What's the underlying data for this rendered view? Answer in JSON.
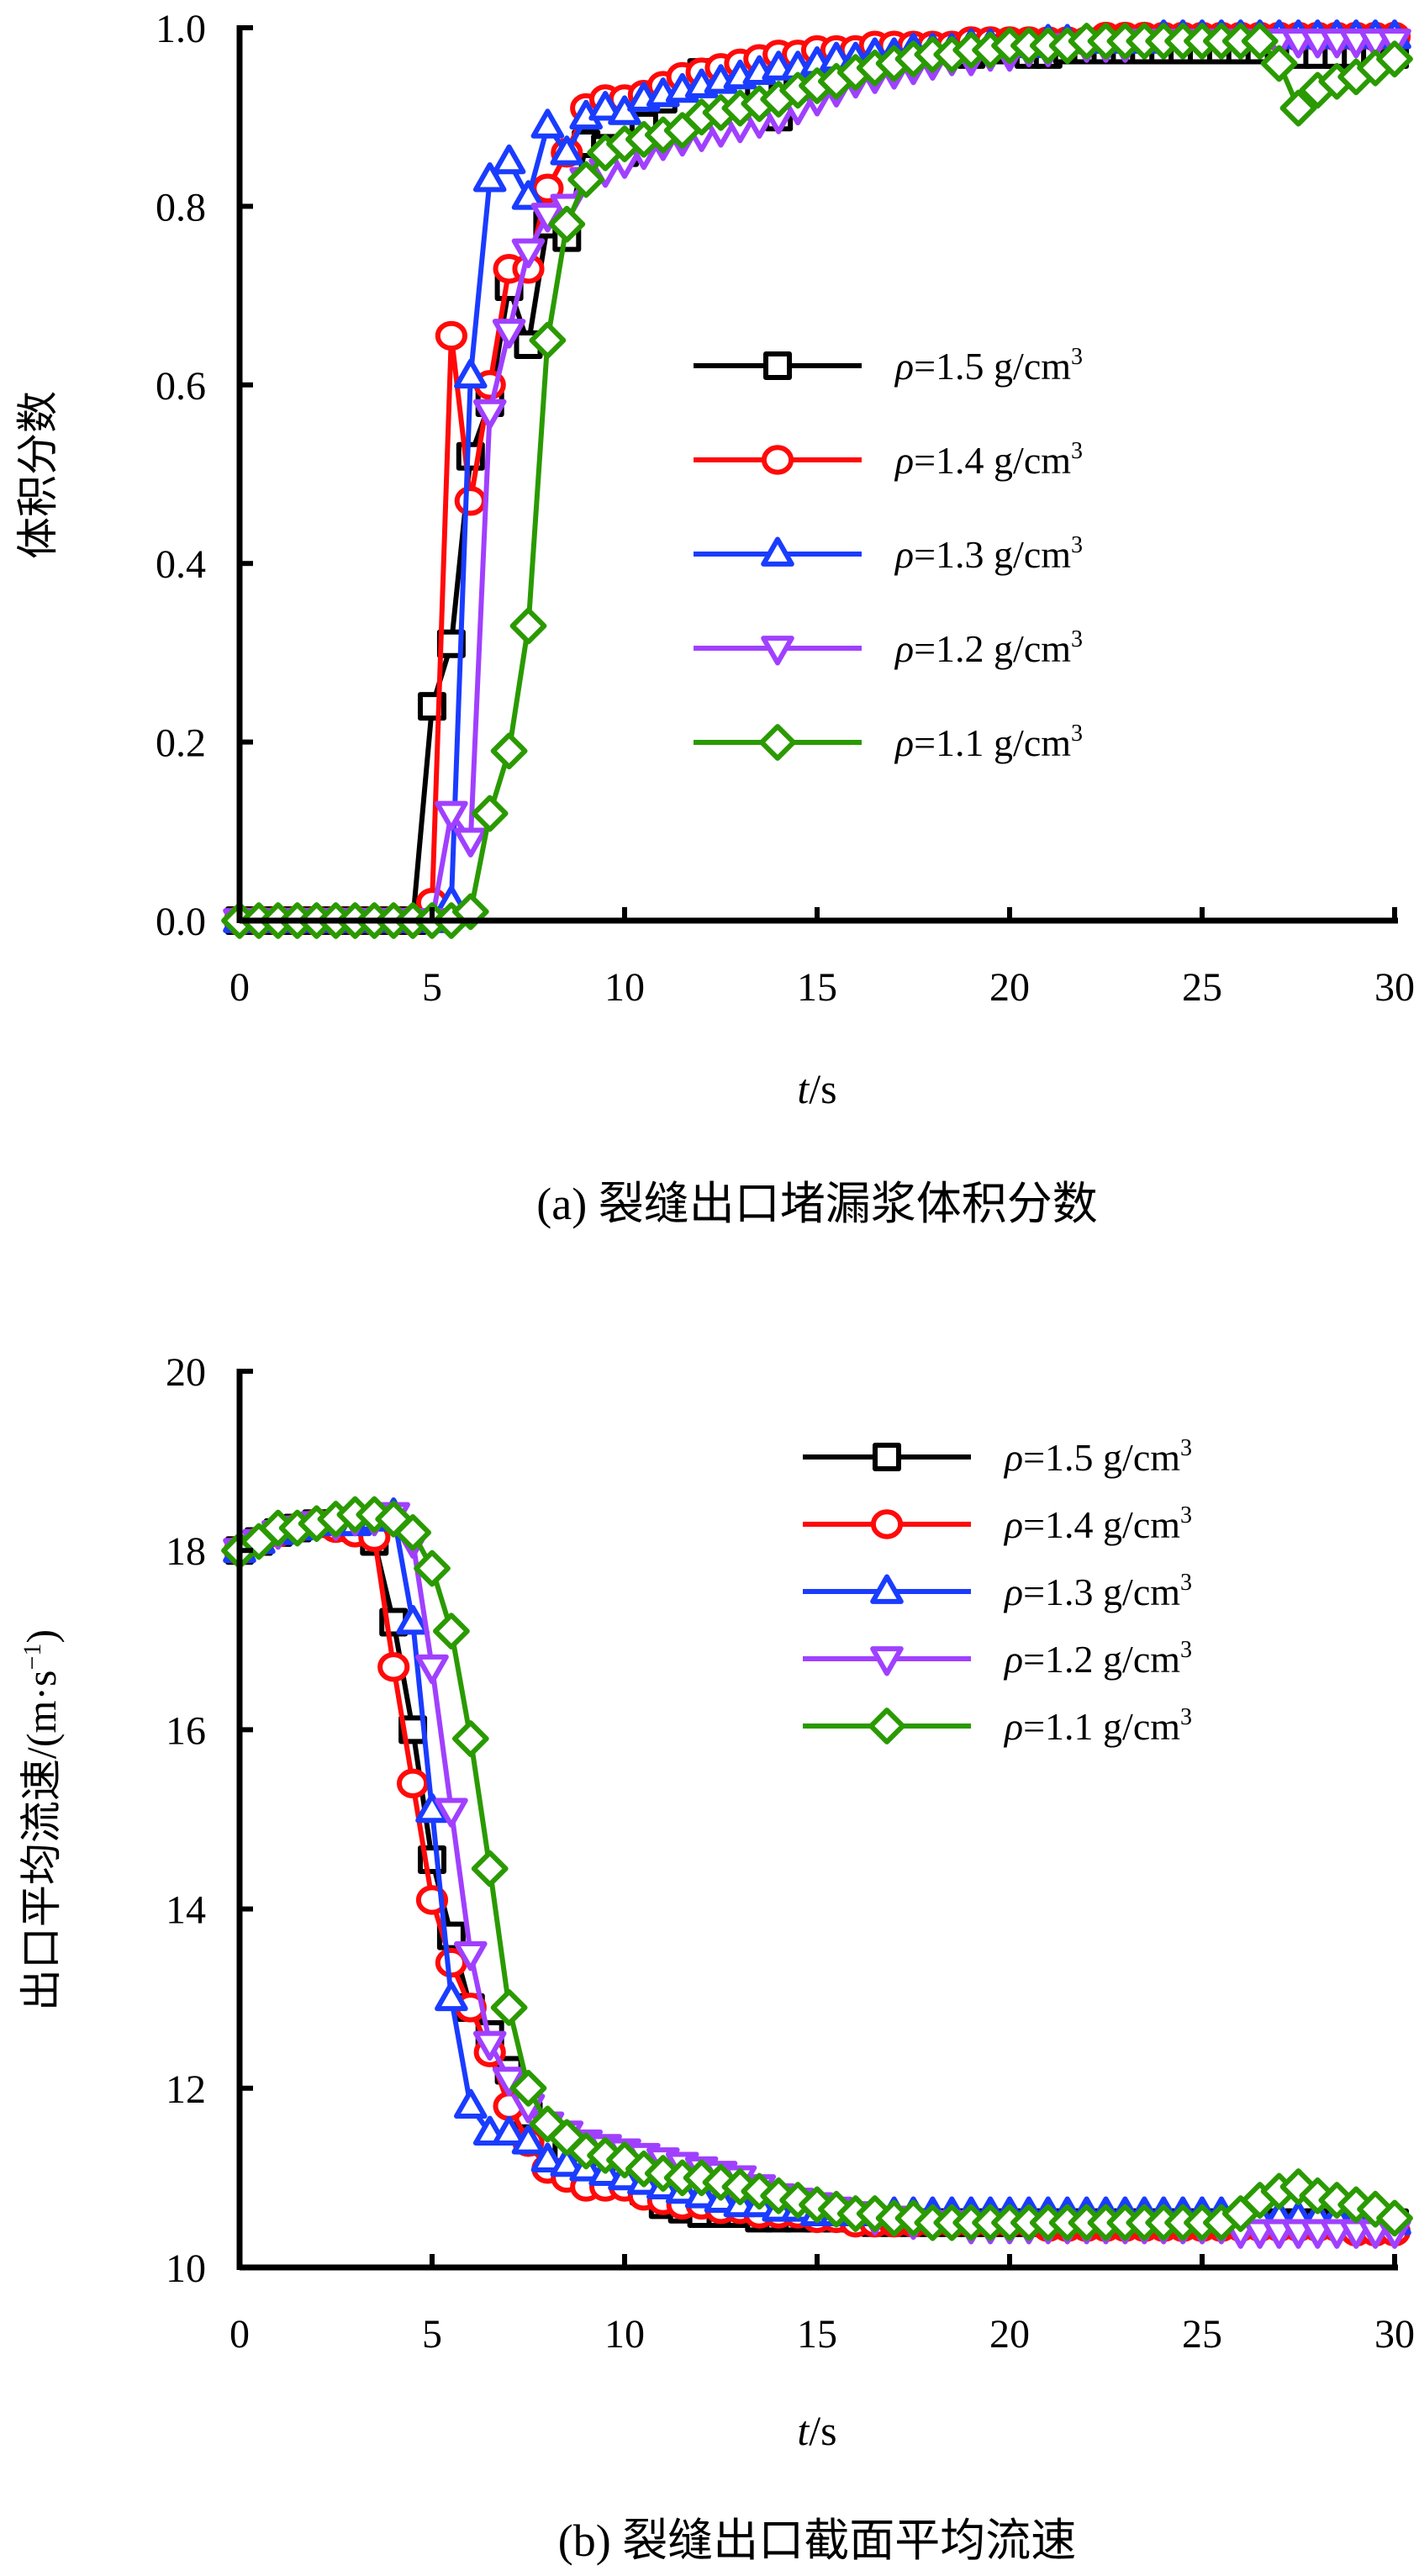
{
  "chart_data": [
    {
      "id": "a",
      "type": "line",
      "caption": "(a) 裂缝出口堵漏浆体积分数",
      "xlabel_italic": "t",
      "xlabel_unit": "/s",
      "ylabel": "体积分数",
      "xlim": [
        0,
        30
      ],
      "ylim": [
        0,
        1.0
      ],
      "xticks": [
        0,
        5,
        10,
        15,
        20,
        25,
        30
      ],
      "yticks": [
        0.0,
        0.2,
        0.4,
        0.6,
        0.8,
        1.0
      ],
      "ytick_labels": [
        "0.0",
        "0.2",
        "0.4",
        "0.6",
        "0.8",
        "1.0"
      ],
      "grid": false,
      "legend_position": "center-right",
      "x": [
        0,
        0.5,
        1,
        1.5,
        2,
        2.5,
        3,
        3.5,
        4,
        4.5,
        5,
        5.5,
        6,
        6.5,
        7,
        7.5,
        8,
        8.5,
        9,
        9.5,
        10,
        10.5,
        11,
        11.5,
        12,
        12.5,
        13,
        13.5,
        14,
        14.5,
        15,
        15.5,
        16,
        16.5,
        17,
        17.5,
        18,
        18.5,
        19,
        19.5,
        20,
        20.5,
        21,
        21.5,
        22,
        22.5,
        23,
        23.5,
        24,
        24.5,
        25,
        25.5,
        26,
        26.5,
        27,
        27.5,
        28,
        28.5,
        29,
        29.5,
        30
      ],
      "series": [
        {
          "name": "ρ=1.5 g/cm³",
          "label_prefix": "ρ",
          "label_value": "=1.5 g/cm",
          "label_sup": "3",
          "color": "#000000",
          "marker": "square",
          "values": [
            0,
            0,
            0,
            0,
            0,
            0,
            0,
            0,
            0,
            0,
            0.24,
            0.31,
            0.52,
            0.58,
            0.71,
            0.645,
            0.78,
            0.765,
            0.87,
            0.865,
            0.86,
            0.89,
            0.92,
            0.935,
            0.95,
            0.95,
            0.95,
            0.93,
            0.9,
            0.93,
            0.95,
            0.955,
            0.96,
            0.965,
            0.97,
            0.97,
            0.975,
            0.975,
            0.97,
            0.975,
            0.975,
            0.97,
            0.97,
            0.975,
            0.975,
            0.975,
            0.975,
            0.975,
            0.975,
            0.975,
            0.975,
            0.975,
            0.975,
            0.975,
            0.97,
            0.97,
            0.97,
            0.97,
            0.97,
            0.97,
            0.97
          ]
        },
        {
          "name": "ρ=1.4 g/cm³",
          "label_prefix": "ρ",
          "label_value": "=1.4 g/cm",
          "label_sup": "3",
          "color": "#ff0a0a",
          "marker": "circle",
          "values": [
            0,
            0,
            0,
            0,
            0,
            0,
            0,
            0,
            0,
            0,
            0.02,
            0.655,
            0.47,
            0.6,
            0.73,
            0.73,
            0.82,
            0.86,
            0.91,
            0.92,
            0.92,
            0.925,
            0.935,
            0.945,
            0.95,
            0.955,
            0.96,
            0.965,
            0.97,
            0.97,
            0.975,
            0.975,
            0.975,
            0.98,
            0.98,
            0.98,
            0.98,
            0.98,
            0.985,
            0.985,
            0.985,
            0.985,
            0.985,
            0.985,
            0.985,
            0.99,
            0.99,
            0.99,
            0.99,
            0.99,
            0.99,
            0.99,
            0.99,
            0.99,
            0.99,
            0.99,
            0.99,
            0.99,
            0.99,
            0.99,
            0.99
          ]
        },
        {
          "name": "ρ=1.3 g/cm³",
          "label_prefix": "ρ",
          "label_value": "=1.3 g/cm",
          "label_sup": "3",
          "color": "#1a3cff",
          "marker": "triangle-up",
          "values": [
            0,
            0,
            0,
            0,
            0,
            0,
            0,
            0,
            0,
            0,
            0,
            0.02,
            0.61,
            0.83,
            0.85,
            0.81,
            0.89,
            0.86,
            0.9,
            0.91,
            0.905,
            0.92,
            0.925,
            0.93,
            0.935,
            0.94,
            0.945,
            0.95,
            0.955,
            0.955,
            0.96,
            0.965,
            0.965,
            0.97,
            0.97,
            0.975,
            0.975,
            0.975,
            0.98,
            0.98,
            0.98,
            0.98,
            0.985,
            0.985,
            0.985,
            0.985,
            0.985,
            0.985,
            0.99,
            0.99,
            0.99,
            0.99,
            0.99,
            0.99,
            0.99,
            0.99,
            0.99,
            0.99,
            0.99,
            0.99,
            0.99
          ]
        },
        {
          "name": "ρ=1.2 g/cm³",
          "label_prefix": "ρ",
          "label_value": "=1.2 g/cm",
          "label_sup": "3",
          "color": "#a040ff",
          "marker": "triangle-down",
          "values": [
            0,
            0,
            0,
            0,
            0,
            0,
            0,
            0,
            0,
            0,
            0,
            0.12,
            0.09,
            0.57,
            0.66,
            0.75,
            0.79,
            0.8,
            0.83,
            0.84,
            0.85,
            0.86,
            0.87,
            0.875,
            0.88,
            0.885,
            0.89,
            0.895,
            0.9,
            0.91,
            0.92,
            0.93,
            0.94,
            0.945,
            0.95,
            0.955,
            0.96,
            0.965,
            0.965,
            0.97,
            0.97,
            0.975,
            0.975,
            0.98,
            0.98,
            0.98,
            0.98,
            0.985,
            0.985,
            0.985,
            0.985,
            0.985,
            0.985,
            0.985,
            0.985,
            0.985,
            0.985,
            0.985,
            0.985,
            0.985,
            0.985
          ]
        },
        {
          "name": "ρ=1.1 g/cm³",
          "label_prefix": "ρ",
          "label_value": "=1.1 g/cm",
          "label_sup": "3",
          "color": "#2a9a00",
          "marker": "diamond",
          "values": [
            0,
            0,
            0,
            0,
            0,
            0,
            0,
            0,
            0,
            0,
            0,
            0,
            0.01,
            0.12,
            0.19,
            0.33,
            0.65,
            0.78,
            0.83,
            0.86,
            0.87,
            0.875,
            0.88,
            0.885,
            0.9,
            0.905,
            0.91,
            0.915,
            0.92,
            0.93,
            0.935,
            0.94,
            0.95,
            0.955,
            0.96,
            0.965,
            0.97,
            0.97,
            0.975,
            0.975,
            0.98,
            0.98,
            0.98,
            0.98,
            0.985,
            0.985,
            0.985,
            0.985,
            0.985,
            0.985,
            0.985,
            0.985,
            0.985,
            0.985,
            0.96,
            0.91,
            0.93,
            0.94,
            0.945,
            0.955,
            0.965
          ]
        }
      ]
    },
    {
      "id": "b",
      "type": "line",
      "caption": "(b) 裂缝出口截面平均流速",
      "xlabel_italic": "t",
      "xlabel_unit": "/s",
      "ylabel": "出口平均流速/(m·s",
      "ylabel_sup": "−1",
      "ylabel_end": ")",
      "xlim": [
        0,
        30
      ],
      "ylim": [
        10,
        20
      ],
      "xticks": [
        0,
        5,
        10,
        15,
        20,
        25,
        30
      ],
      "yticks": [
        10,
        12,
        14,
        16,
        18,
        20
      ],
      "ytick_labels": [
        "10",
        "12",
        "14",
        "16",
        "18",
        "20"
      ],
      "grid": false,
      "legend_position": "top-right",
      "x": [
        0,
        0.5,
        1,
        1.5,
        2,
        2.5,
        3,
        3.5,
        4,
        4.5,
        5,
        5.5,
        6,
        6.5,
        7,
        7.5,
        8,
        8.5,
        9,
        9.5,
        10,
        10.5,
        11,
        11.5,
        12,
        12.5,
        13,
        13.5,
        14,
        14.5,
        15,
        15.5,
        16,
        16.5,
        17,
        17.5,
        18,
        18.5,
        19,
        19.5,
        20,
        20.5,
        21,
        21.5,
        22,
        22.5,
        23,
        23.5,
        24,
        24.5,
        25,
        25.5,
        26,
        26.5,
        27,
        27.5,
        28,
        28.5,
        29,
        29.5,
        30
      ],
      "series": [
        {
          "name": "ρ=1.5 g/cm³",
          "label_prefix": "ρ",
          "label_value": "=1.5 g/cm",
          "label_sup": "3",
          "color": "#000000",
          "marker": "square",
          "values": [
            18.0,
            18.1,
            18.2,
            18.25,
            18.3,
            18.3,
            18.25,
            18.1,
            17.2,
            16.0,
            14.55,
            13.7,
            12.9,
            12.6,
            12.2,
            11.7,
            11.4,
            11.25,
            11.1,
            11.05,
            11.0,
            10.85,
            10.7,
            10.65,
            10.6,
            10.6,
            10.6,
            10.55,
            10.55,
            10.55,
            10.55,
            10.55,
            10.55,
            10.5,
            10.5,
            10.5,
            10.5,
            10.5,
            10.5,
            10.5,
            10.5,
            10.5,
            10.5,
            10.5,
            10.5,
            10.5,
            10.5,
            10.5,
            10.5,
            10.5,
            10.5,
            10.5,
            10.5,
            10.5,
            10.5,
            10.5,
            10.5,
            10.5,
            10.5,
            10.5,
            10.5
          ]
        },
        {
          "name": "ρ=1.4 g/cm³",
          "label_prefix": "ρ",
          "label_value": "=1.4 g/cm",
          "label_sup": "3",
          "color": "#ff0a0a",
          "marker": "circle",
          "values": [
            18.0,
            18.1,
            18.2,
            18.25,
            18.3,
            18.25,
            18.2,
            18.15,
            16.7,
            15.4,
            14.1,
            13.4,
            12.9,
            12.4,
            11.8,
            11.4,
            11.1,
            11.0,
            10.9,
            10.9,
            10.9,
            10.8,
            10.75,
            10.7,
            10.7,
            10.65,
            10.65,
            10.6,
            10.6,
            10.6,
            10.55,
            10.55,
            10.5,
            10.5,
            10.5,
            10.5,
            10.5,
            10.5,
            10.5,
            10.5,
            10.5,
            10.5,
            10.45,
            10.45,
            10.45,
            10.45,
            10.45,
            10.45,
            10.45,
            10.45,
            10.45,
            10.45,
            10.45,
            10.45,
            10.45,
            10.45,
            10.45,
            10.45,
            10.4,
            10.4,
            10.4
          ]
        },
        {
          "name": "ρ=1.3 g/cm³",
          "label_prefix": "ρ",
          "label_value": "=1.3 g/cm",
          "label_sup": "3",
          "color": "#1a3cff",
          "marker": "triangle-up",
          "values": [
            18.0,
            18.1,
            18.2,
            18.25,
            18.3,
            18.3,
            18.3,
            18.35,
            18.4,
            17.2,
            15.1,
            13.0,
            11.8,
            11.5,
            11.5,
            11.4,
            11.2,
            11.15,
            11.1,
            11.05,
            11.0,
            10.95,
            10.9,
            10.85,
            10.8,
            10.75,
            10.7,
            10.7,
            10.65,
            10.65,
            10.6,
            10.6,
            10.6,
            10.6,
            10.6,
            10.6,
            10.6,
            10.6,
            10.6,
            10.6,
            10.6,
            10.6,
            10.6,
            10.6,
            10.6,
            10.6,
            10.6,
            10.6,
            10.6,
            10.6,
            10.6,
            10.6,
            10.55,
            10.55,
            10.55,
            10.55,
            10.55,
            10.55,
            10.55,
            10.55,
            10.5
          ]
        },
        {
          "name": "ρ=1.2 g/cm³",
          "label_prefix": "ρ",
          "label_value": "=1.2 g/cm",
          "label_sup": "3",
          "color": "#a040ff",
          "marker": "triangle-down",
          "values": [
            18.0,
            18.1,
            18.2,
            18.25,
            18.3,
            18.3,
            18.35,
            18.35,
            18.4,
            18.1,
            16.7,
            15.1,
            13.5,
            12.5,
            12.1,
            11.8,
            11.6,
            11.5,
            11.4,
            11.35,
            11.3,
            11.25,
            11.2,
            11.15,
            11.1,
            11.05,
            11.0,
            10.9,
            10.8,
            10.75,
            10.7,
            10.65,
            10.6,
            10.55,
            10.55,
            10.5,
            10.5,
            10.5,
            10.45,
            10.45,
            10.45,
            10.45,
            10.45,
            10.45,
            10.45,
            10.45,
            10.45,
            10.45,
            10.45,
            10.45,
            10.45,
            10.45,
            10.4,
            10.4,
            10.4,
            10.4,
            10.4,
            10.4,
            10.4,
            10.4,
            10.4
          ]
        },
        {
          "name": "ρ=1.1 g/cm³",
          "label_prefix": "ρ",
          "label_value": "=1.1 g/cm",
          "label_sup": "3",
          "color": "#2a9a00",
          "marker": "diamond",
          "values": [
            18.0,
            18.1,
            18.25,
            18.25,
            18.3,
            18.35,
            18.4,
            18.4,
            18.35,
            18.2,
            17.8,
            17.1,
            15.9,
            14.45,
            12.9,
            12.0,
            11.6,
            11.45,
            11.3,
            11.25,
            11.2,
            11.1,
            11.05,
            11.0,
            11.0,
            10.95,
            10.9,
            10.85,
            10.8,
            10.75,
            10.7,
            10.65,
            10.6,
            10.6,
            10.55,
            10.55,
            10.5,
            10.5,
            10.5,
            10.5,
            10.5,
            10.5,
            10.5,
            10.5,
            10.5,
            10.5,
            10.5,
            10.5,
            10.5,
            10.5,
            10.5,
            10.5,
            10.6,
            10.75,
            10.85,
            10.9,
            10.8,
            10.75,
            10.7,
            10.65,
            10.55
          ]
        }
      ]
    }
  ]
}
